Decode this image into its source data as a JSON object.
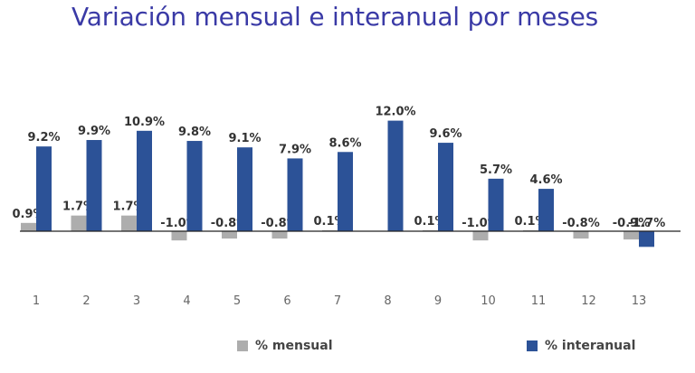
{
  "colors": {
    "mensual": "#adadad",
    "interanual": "#2c5297",
    "title": "#3a3aa6",
    "axis": "#222222"
  },
  "chart_data": {
    "type": "bar",
    "title": "Variación mensual e interanual por meses",
    "xlabel": "",
    "ylabel": "",
    "categories": [
      "1",
      "2",
      "3",
      "4",
      "5",
      "6",
      "7",
      "8",
      "9",
      "10",
      "11",
      "12",
      "13"
    ],
    "series": [
      {
        "name": "% mensual",
        "values": [
          0.9,
          1.7,
          1.7,
          -1.0,
          -0.8,
          -0.8,
          0.1,
          null,
          0.1,
          -1.0,
          0.1,
          -0.8,
          -0.9
        ],
        "labels": [
          "0.9%",
          "1.7%",
          "1.7%",
          "-1.0%",
          "-0.8%",
          "-0.8%",
          "0.1%",
          "",
          "0.1%",
          "-1.0%",
          "0.1%",
          "-0.8%",
          "-0.9%"
        ]
      },
      {
        "name": "% interanual",
        "values": [
          9.2,
          9.9,
          10.9,
          9.8,
          9.1,
          7.9,
          8.6,
          12.0,
          9.6,
          5.7,
          4.6,
          null,
          -1.7
        ],
        "labels": [
          "9.2%",
          "9.9%",
          "10.9%",
          "9.8%",
          "9.1%",
          "7.9%",
          "8.6%",
          "12.0%",
          "9.6%",
          "5.7%",
          "4.6%",
          "",
          "-1.7%"
        ]
      }
    ],
    "ylim": [
      -2.0,
      12.5
    ],
    "grid": false,
    "legend_position": "bottom"
  }
}
